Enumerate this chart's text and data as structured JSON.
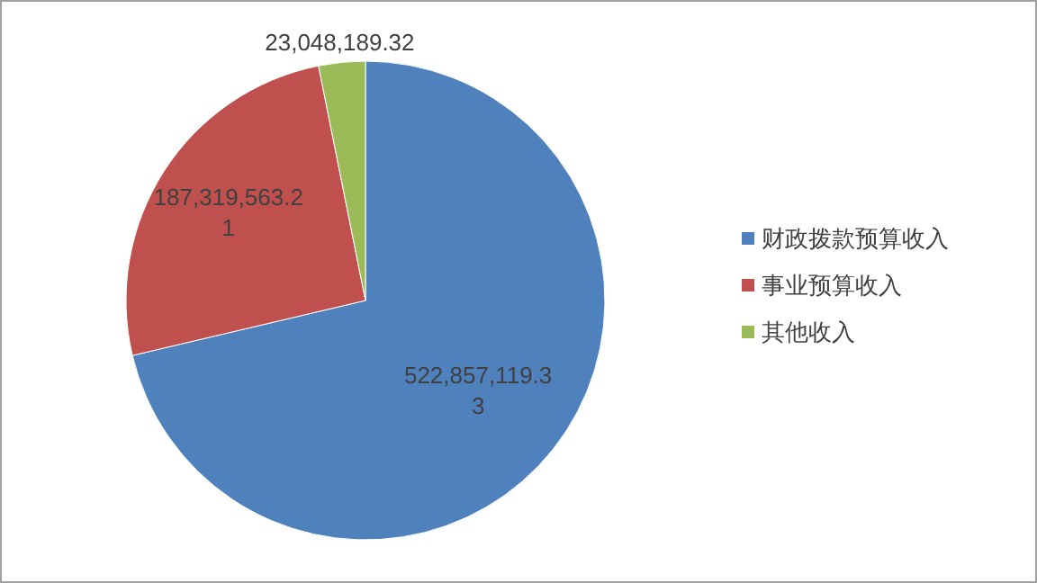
{
  "chart_data": {
    "type": "pie",
    "categories": [
      "财政拨款预算收入",
      "事业预算收入",
      "其他收入"
    ],
    "values": [
      522857119.33,
      187319563.21,
      23048189.32
    ],
    "colors": [
      "#4f81bd",
      "#c0504d",
      "#9bbb59"
    ],
    "value_labels": [
      "522,857,119.33",
      "187,319,563.21",
      "23,048,189.32"
    ],
    "legend": "right"
  }
}
